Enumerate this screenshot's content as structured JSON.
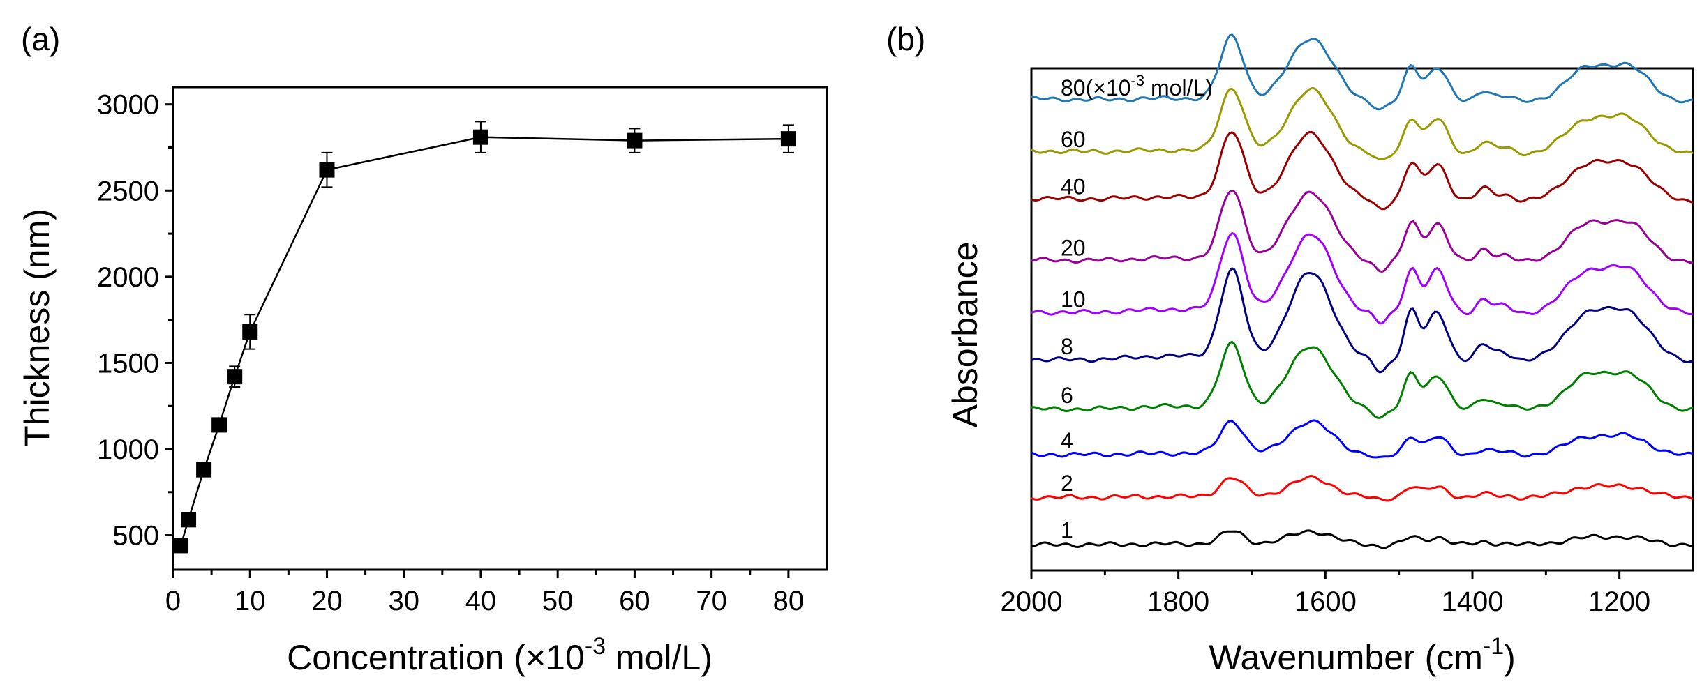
{
  "chart_data": [
    {
      "panel": "(a)",
      "type": "line",
      "xlabel": "Concentration (×10",
      "xlabel_sup": "-3",
      "xlabel_end": " mol/L)",
      "ylabel": "Thickness (nm)",
      "xlim": [
        0,
        85
      ],
      "ylim": [
        300,
        3100
      ],
      "xticks": [
        0,
        10,
        20,
        30,
        40,
        50,
        60,
        70,
        80
      ],
      "yticks": [
        500,
        1000,
        1500,
        2000,
        2500,
        3000
      ],
      "x": [
        1,
        2,
        4,
        6,
        8,
        10,
        20,
        40,
        60,
        80
      ],
      "y": [
        440,
        590,
        880,
        1140,
        1420,
        1680,
        2620,
        2810,
        2790,
        2800
      ],
      "err": [
        0,
        0,
        0,
        30,
        60,
        100,
        100,
        90,
        70,
        80
      ]
    },
    {
      "panel": "(b)",
      "type": "line",
      "xlabel": "Wavenumber (cm",
      "xlabel_sup": "-1",
      "xlabel_end": ")",
      "ylabel": "Absorbance",
      "xlim": [
        2000,
        1100
      ],
      "xticks": [
        2000,
        1800,
        1600,
        1400,
        1200
      ],
      "peaks_cm-1": [
        1725,
        1620,
        1525,
        1480,
        1445,
        1380,
        1240,
        1190
      ],
      "series": [
        {
          "label": "1",
          "color": "#000000",
          "baseline": 0.05,
          "scale": 0.22
        },
        {
          "label": "2",
          "color": "#ff0000",
          "baseline": 0.55,
          "scale": 0.32
        },
        {
          "label": "4",
          "color": "#0000ff",
          "baseline": 1.0,
          "scale": 0.55
        },
        {
          "label": "6",
          "color": "#008000",
          "baseline": 1.48,
          "scale": 1.05
        },
        {
          "label": "8",
          "color": "#000080",
          "baseline": 2.0,
          "scale": 1.45
        },
        {
          "label": "10",
          "color": "#a000ff",
          "baseline": 2.5,
          "scale": 1.3
        },
        {
          "label": "20",
          "color": "#990099",
          "baseline": 3.05,
          "scale": 1.15
        },
        {
          "label": "40",
          "color": "#990000",
          "baseline": 3.7,
          "scale": 1.1
        },
        {
          "label": "60",
          "color": "#999900",
          "baseline": 4.2,
          "scale": 1.05
        },
        {
          "label": "80",
          "color": "#1f77b4",
          "baseline": 4.75,
          "scale": 1.05
        }
      ],
      "first_label_suffix": "(×10",
      "first_label_sup": "-3",
      "first_label_end": " mol/L)"
    }
  ]
}
